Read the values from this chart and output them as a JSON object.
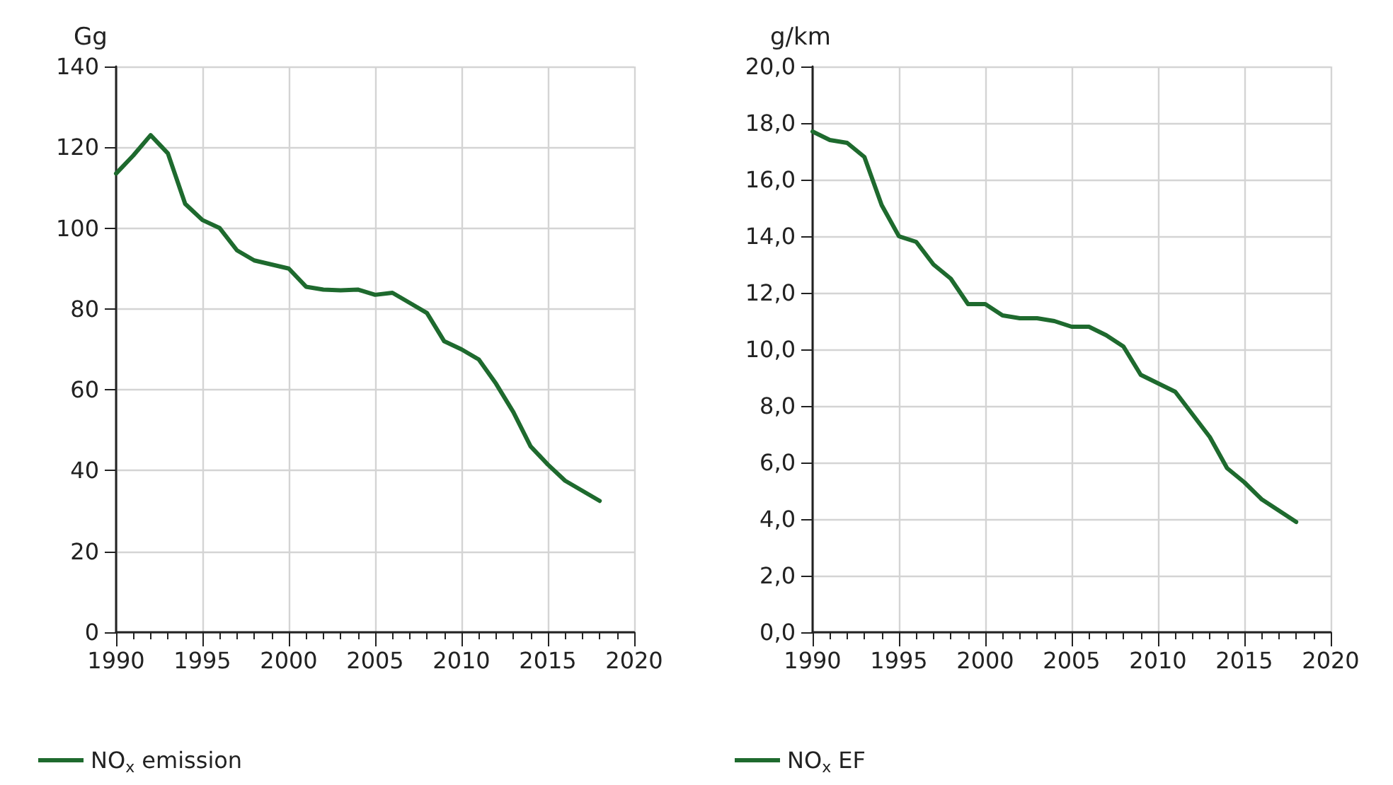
{
  "chart_data": [
    {
      "type": "line",
      "ylabel": "Gg",
      "x": [
        1990,
        1991,
        1992,
        1993,
        1994,
        1995,
        1996,
        1997,
        1998,
        1999,
        2000,
        2001,
        2002,
        2003,
        2004,
        2005,
        2006,
        2007,
        2008,
        2009,
        2010,
        2011,
        2012,
        2013,
        2014,
        2015,
        2016,
        2017,
        2018
      ],
      "series": [
        {
          "name": "NO$_{x}$ emission",
          "color": "#1e6a2e",
          "values": [
            113.5,
            118,
            123,
            118.5,
            106,
            102,
            100,
            94.5,
            92,
            91,
            90,
            85.5,
            84.8,
            84.6,
            84.8,
            83.5,
            84,
            81.5,
            79,
            72,
            70,
            67.5,
            61.5,
            54.5,
            46,
            41.5,
            37.5,
            35,
            32.5
          ]
        }
      ],
      "xlim": [
        1990,
        2020
      ],
      "xticks": [
        1990,
        1995,
        2000,
        2005,
        2010,
        2015,
        2020
      ],
      "ylim": [
        0,
        140
      ],
      "yticks": [
        0,
        20,
        40,
        60,
        80,
        100,
        120,
        140
      ],
      "grid": true,
      "legend": "bottom left",
      "marker": "none",
      "line_style": "solid"
    },
    {
      "type": "line",
      "ylabel": "g/km",
      "x": [
        1990,
        1991,
        1992,
        1993,
        1994,
        1995,
        1996,
        1997,
        1998,
        1999,
        2000,
        2001,
        2002,
        2003,
        2004,
        2005,
        2006,
        2007,
        2008,
        2009,
        2010,
        2011,
        2012,
        2013,
        2014,
        2015,
        2016,
        2017,
        2018
      ],
      "series": [
        {
          "name": "NO$_{x}$ EF",
          "color": "#1e6a2e",
          "values": [
            17.7,
            17.4,
            17.3,
            16.8,
            15.1,
            14.0,
            13.8,
            13.0,
            12.5,
            11.6,
            11.6,
            11.2,
            11.1,
            11.1,
            11.0,
            10.8,
            10.8,
            10.5,
            10.1,
            9.1,
            8.8,
            8.5,
            7.7,
            6.9,
            5.8,
            5.3,
            4.7,
            4.3,
            3.9
          ]
        }
      ],
      "xlim": [
        1990,
        2020
      ],
      "xticks": [
        1990,
        1995,
        2000,
        2005,
        2010,
        2015,
        2020
      ],
      "ylim": [
        0,
        20
      ],
      "yticks": [
        {
          "value": 0,
          "label": "0,0"
        },
        {
          "value": 2,
          "label": "2,0"
        },
        {
          "value": 4,
          "label": "4,0"
        },
        {
          "value": 6,
          "label": "6,0"
        },
        {
          "value": 8,
          "label": "8,0"
        },
        {
          "value": 10,
          "label": "10,0"
        },
        {
          "value": 12,
          "label": "12,0"
        },
        {
          "value": 14,
          "label": "14,0"
        },
        {
          "value": 16,
          "label": "16,0"
        },
        {
          "value": 18,
          "label": "18,0"
        },
        {
          "value": 20,
          "label": "20,0"
        }
      ],
      "grid": true,
      "legend": "bottom left",
      "marker": "none",
      "line_style": "solid"
    }
  ]
}
